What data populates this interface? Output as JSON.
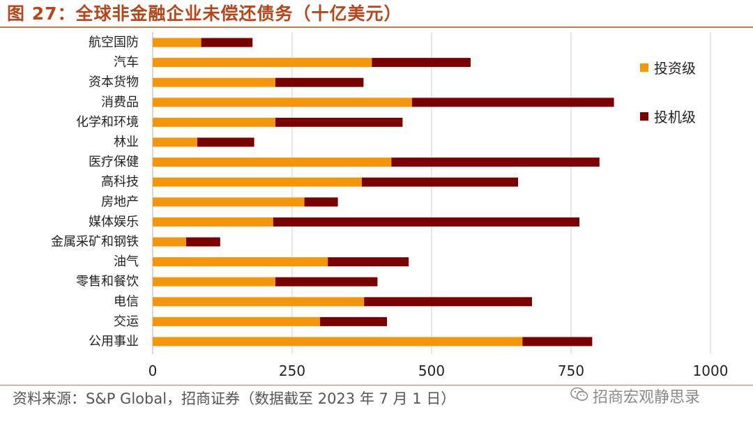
{
  "header": {
    "title": "图 27：全球非金融企业未偿还债务（十亿美元）"
  },
  "footer": {
    "source": "资料来源：S&P Global，招商证券（数据截至 2023 年 7 月 1 日）"
  },
  "watermark": {
    "text": "招商宏观静思录"
  },
  "colors": {
    "investment_grade": "#f5960a",
    "speculative_grade": "#7b0000",
    "accent": "#b5451b",
    "grid": "#d9d9d9"
  },
  "chart_data": {
    "type": "bar",
    "orientation": "horizontal",
    "stacked": true,
    "title": "全球非金融企业未偿还债务（十亿美元）",
    "xlabel": "",
    "ylabel": "",
    "xlim": [
      0,
      1000
    ],
    "xticks": [
      0,
      250,
      500,
      750,
      1000
    ],
    "grid": true,
    "legend_position": "right",
    "categories": [
      "航空国防",
      "汽车",
      "资本货物",
      "消费品",
      "化学和环境",
      "林业",
      "医疗保健",
      "高科技",
      "房地产",
      "媒体娱乐",
      "金属采矿和钢铁",
      "油气",
      "零售和餐饮",
      "电信",
      "交运",
      "公用事业"
    ],
    "series": [
      {
        "name": "投资级",
        "color": "#f5960a",
        "values": [
          87,
          393,
          220,
          465,
          220,
          80,
          428,
          375,
          272,
          216,
          60,
          314,
          220,
          379,
          300,
          663
        ]
      },
      {
        "name": "投机级",
        "color": "#7b0000",
        "values": [
          92,
          177,
          158,
          362,
          228,
          102,
          373,
          280,
          60,
          549,
          61,
          145,
          183,
          301,
          120,
          125
        ]
      }
    ]
  }
}
